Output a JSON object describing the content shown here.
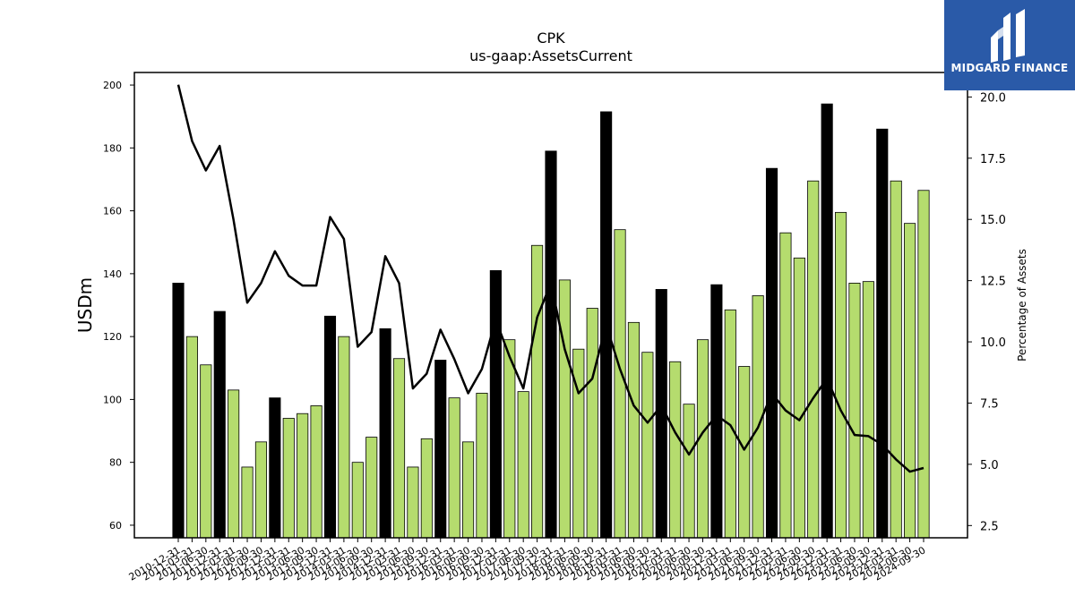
{
  "header": {
    "title": "CPK",
    "subtitle": "us-gaap:AssetsCurrent"
  },
  "logo": {
    "text": "MIDGARD FINANCE",
    "background": "#2a5aa8"
  },
  "chart_data": {
    "type": "bar",
    "ylabel": "USDm",
    "y2label": "Percentage of Assets",
    "ylim": [
      56,
      204
    ],
    "y2lim": [
      2.0,
      21.0
    ],
    "yticks": [
      60,
      80,
      100,
      120,
      140,
      160,
      180,
      200
    ],
    "y2ticks": [
      "2.5",
      "5.0",
      "7.5",
      "10.0",
      "12.5",
      "15.0",
      "17.5",
      "20.0"
    ],
    "colors": {
      "annual_bar": "#000000",
      "quarter_bar": "#b5dc6e",
      "line": "#000000"
    },
    "categories": [
      "2010-12-31",
      "2011-03-31",
      "2011-06-30",
      "2011-12-31",
      "2012-03-31",
      "2012-06-30",
      "2012-09-30",
      "2012-12-31",
      "2013-03-31",
      "2013-06-30",
      "2013-09-30",
      "2013-12-31",
      "2014-03-31",
      "2014-06-30",
      "2014-09-30",
      "2014-12-31",
      "2015-03-31",
      "2015-06-30",
      "2015-09-30",
      "2015-12-31",
      "2016-03-31",
      "2016-06-30",
      "2016-09-30",
      "2016-12-31",
      "2017-03-31",
      "2017-06-30",
      "2017-09-30",
      "2017-12-31",
      "2018-03-31",
      "2018-06-30",
      "2018-09-30",
      "2018-12-31",
      "2019-03-31",
      "2019-06-30",
      "2019-09-30",
      "2019-12-31",
      "2020-03-31",
      "2020-06-30",
      "2020-09-30",
      "2020-12-31",
      "2021-03-31",
      "2021-06-30",
      "2021-09-30",
      "2021-12-31",
      "2022-03-31",
      "2022-06-30",
      "2022-09-30",
      "2022-12-31",
      "2023-03-31",
      "2023-06-30",
      "2023-09-30",
      "2023-12-31",
      "2024-03-31",
      "2024-06-30",
      "2024-09-30"
    ],
    "series": [
      {
        "values": [
          137,
          120,
          111,
          128,
          103,
          78.5,
          86.5,
          100.5,
          94,
          95.5,
          98,
          126.5,
          120,
          80,
          88,
          122.5,
          113,
          78.5,
          87.5,
          112.5,
          100.5,
          86.5,
          102,
          141,
          119,
          102.5,
          149,
          179,
          138,
          116,
          129,
          191.5,
          154,
          124.5,
          115,
          135,
          112,
          98.5,
          119,
          136.5,
          128.5,
          110.5,
          133,
          173.5,
          153,
          145,
          169.5,
          194,
          159.5,
          137,
          137.5,
          186,
          169.5,
          156,
          166.5
        ],
        "annual": [
          true,
          false,
          false,
          true,
          false,
          false,
          false,
          true,
          false,
          false,
          false,
          true,
          false,
          false,
          false,
          true,
          false,
          false,
          false,
          true,
          false,
          false,
          false,
          true,
          false,
          false,
          false,
          true,
          false,
          false,
          false,
          true,
          false,
          false,
          false,
          true,
          false,
          false,
          false,
          true,
          false,
          false,
          false,
          true,
          false,
          false,
          false,
          true,
          false,
          false,
          false,
          true,
          false,
          false,
          false
        ]
      },
      {
        "axis": "right",
        "values": [
          20.5,
          18.2,
          17.0,
          18.0,
          15.0,
          11.6,
          12.4,
          13.7,
          12.7,
          12.3,
          12.3,
          15.1,
          14.2,
          9.8,
          10.4,
          13.5,
          12.4,
          8.1,
          8.7,
          10.5,
          9.3,
          7.9,
          8.9,
          10.9,
          9.4,
          8.1,
          11.0,
          12.4,
          9.7,
          7.9,
          8.5,
          10.7,
          8.9,
          7.4,
          6.7,
          7.4,
          6.3,
          5.4,
          6.3,
          7.0,
          6.6,
          5.6,
          6.5,
          7.9,
          7.2,
          6.8,
          7.7,
          8.5,
          7.2,
          6.2,
          6.15,
          5.8,
          5.2,
          4.7,
          4.85
        ]
      }
    ]
  }
}
